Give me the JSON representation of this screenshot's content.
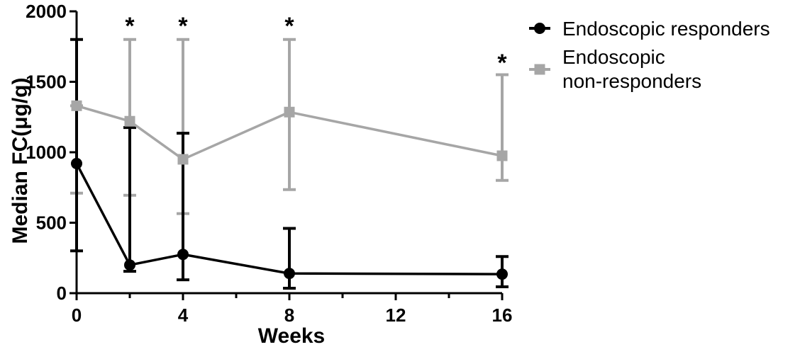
{
  "chart_data": {
    "type": "line",
    "xlabel": "Weeks",
    "ylabel": "Median FC(μg/g)",
    "xlim": [
      0,
      16
    ],
    "ylim": [
      0,
      2000
    ],
    "xticks": [
      "0",
      "4",
      "8",
      "12",
      "16"
    ],
    "yticks": [
      "0",
      "500",
      "1000",
      "1500",
      "2000"
    ],
    "grid": false,
    "legend_position": "right",
    "series": [
      {
        "name": "Endoscopic non-responders",
        "color": "#a6a6a6",
        "marker": "square",
        "x": [
          0,
          2,
          4,
          8,
          16
        ],
        "y": [
          1330,
          1220,
          950,
          1285,
          975
        ],
        "err_low": [
          710,
          695,
          565,
          735,
          800
        ],
        "err_high": [
          1330,
          1800,
          1800,
          1800,
          1550
        ]
      },
      {
        "name": "Endoscopic responders",
        "color": "#000000",
        "marker": "circle",
        "x": [
          0,
          2,
          4,
          8,
          16
        ],
        "y": [
          920,
          200,
          275,
          140,
          135
        ],
        "err_low": [
          300,
          155,
          95,
          35,
          45
        ],
        "err_high": [
          1800,
          1175,
          1135,
          460,
          260
        ]
      }
    ],
    "legend_order": [
      1,
      0
    ],
    "legend_lines": [
      [
        "Endoscopic responders"
      ],
      [
        "Endoscopic",
        "non-responders"
      ]
    ],
    "annotations": [
      {
        "text": "*",
        "x": 2
      },
      {
        "text": "*",
        "x": 4
      },
      {
        "text": "*",
        "x": 8
      },
      {
        "text": "*",
        "x": 16
      }
    ]
  }
}
